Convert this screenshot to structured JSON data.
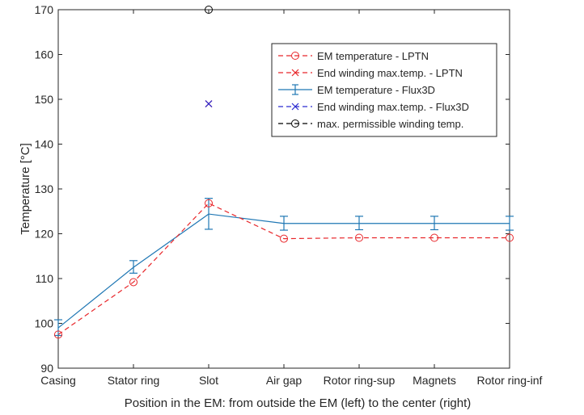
{
  "chart_data": {
    "type": "line",
    "xlabel": "Position in the EM: from outside the EM (left) to the center (right)",
    "ylabel": "Temperature [°C]",
    "ylim": [
      90,
      170
    ],
    "yticks": [
      90,
      100,
      110,
      120,
      130,
      140,
      150,
      160,
      170
    ],
    "grid": false,
    "legend_position": "top-right",
    "categories": [
      "Casing",
      "Stator ring",
      "Slot",
      "Air gap",
      "Rotor ring-sup",
      "Magnets",
      "Rotor ring-inf"
    ],
    "series": [
      {
        "name": "EM temperature - LPTN",
        "style": "dashed-circle",
        "color": "#e8262a",
        "values": [
          97.5,
          109.2,
          126.8,
          118.9,
          119.1,
          119.1,
          119.1
        ]
      },
      {
        "name": "End winding max.temp. - LPTN",
        "style": "cross",
        "color": "#e8262a",
        "points": [
          {
            "x": "Slot",
            "y": 149
          }
        ]
      },
      {
        "name": "EM temperature - Flux3D",
        "style": "solid-errorbar",
        "color": "#1f77b4",
        "values": [
          99.0,
          112.5,
          124.4,
          122.3,
          122.3,
          122.3,
          122.3
        ],
        "lower": [
          97.3,
          111.2,
          121.0,
          120.8,
          120.9,
          120.9,
          120.8
        ],
        "upper": [
          100.8,
          114.0,
          127.9,
          123.9,
          123.9,
          123.9,
          123.9
        ]
      },
      {
        "name": "End winding max.temp. - Flux3D",
        "style": "cross",
        "color": "#2a2ad0",
        "points": [
          {
            "x": "Slot",
            "y": 149
          }
        ]
      },
      {
        "name": "max. permissible winding temp.",
        "style": "dashed-circle",
        "color": "#000000",
        "points": [
          {
            "x": "Slot",
            "y": 170
          }
        ]
      }
    ]
  }
}
